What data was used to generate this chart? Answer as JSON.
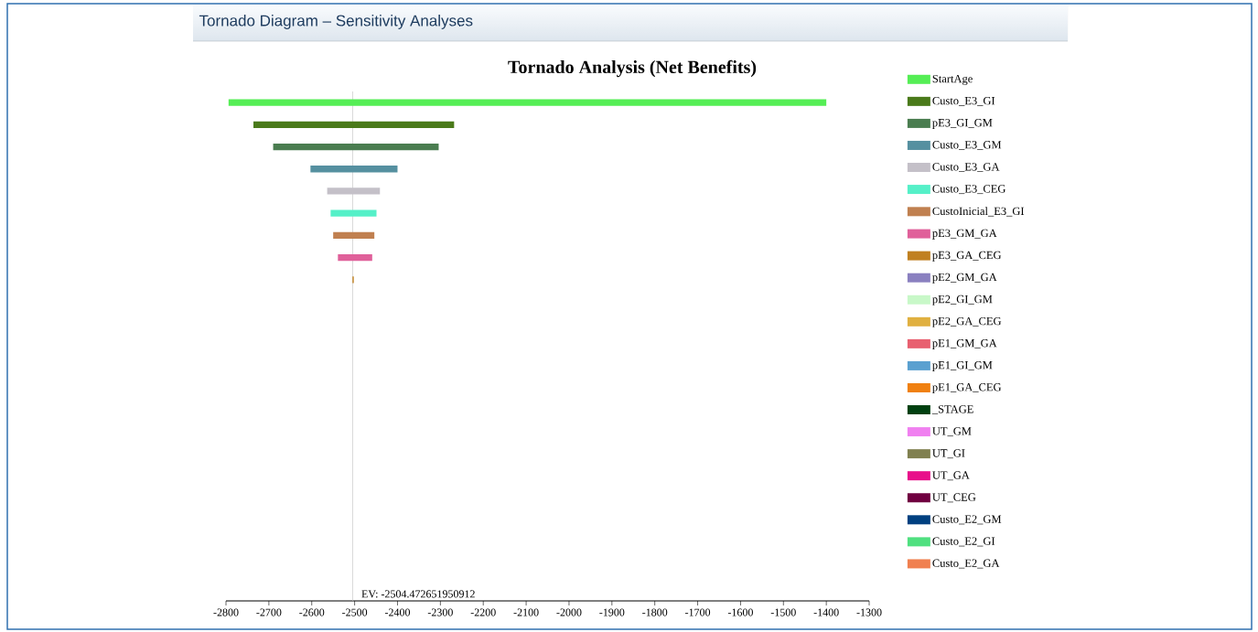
{
  "chart_data": {
    "type": "bar",
    "orientation": "horizontal",
    "title": "Tornado Analysis (Net Benefits)",
    "annotations": [
      "Tornado Diagram – Sensitivity Analyses"
    ],
    "categories": [
      null,
      null,
      null,
      null,
      null,
      null,
      null,
      null,
      null,
      null,
      null,
      null,
      null,
      null,
      null,
      null,
      null,
      null,
      null,
      null,
      null,
      null,
      null
    ],
    "series": [
      {
        "name": "StartAge",
        "color": "#55ee55",
        "base": [
          -2794,
          null,
          null,
          null,
          null,
          null,
          null,
          null,
          null,
          null,
          null,
          null,
          null,
          null,
          null,
          null,
          null,
          null,
          null,
          null,
          null,
          null,
          null
        ],
        "values": [
          1394,
          null,
          null,
          null,
          null,
          null,
          null,
          null,
          null,
          null,
          null,
          null,
          null,
          null,
          null,
          null,
          null,
          null,
          null,
          null,
          null,
          null,
          null
        ]
      },
      {
        "name": "Custo_E3_GI",
        "color": "#4a7a1a",
        "base": [
          null,
          -2736,
          null,
          null,
          null,
          null,
          null,
          null,
          null,
          null,
          null,
          null,
          null,
          null,
          null,
          null,
          null,
          null,
          null,
          null,
          null,
          null,
          null
        ],
        "values": [
          null,
          468,
          null,
          null,
          null,
          null,
          null,
          null,
          null,
          null,
          null,
          null,
          null,
          null,
          null,
          null,
          null,
          null,
          null,
          null,
          null,
          null,
          null
        ]
      },
      {
        "name": "pE3_GI_GM",
        "color": "#4a7d50",
        "base": [
          null,
          null,
          -2690,
          null,
          null,
          null,
          null,
          null,
          null,
          null,
          null,
          null,
          null,
          null,
          null,
          null,
          null,
          null,
          null,
          null,
          null,
          null,
          null
        ],
        "values": [
          null,
          null,
          386,
          null,
          null,
          null,
          null,
          null,
          null,
          null,
          null,
          null,
          null,
          null,
          null,
          null,
          null,
          null,
          null,
          null,
          null,
          null,
          null
        ]
      },
      {
        "name": "Custo_E3_GM",
        "color": "#5590a0",
        "base": [
          null,
          null,
          null,
          -2603,
          null,
          null,
          null,
          null,
          null,
          null,
          null,
          null,
          null,
          null,
          null,
          null,
          null,
          null,
          null,
          null,
          null,
          null,
          null
        ],
        "values": [
          null,
          null,
          null,
          203,
          null,
          null,
          null,
          null,
          null,
          null,
          null,
          null,
          null,
          null,
          null,
          null,
          null,
          null,
          null,
          null,
          null,
          null,
          null
        ]
      },
      {
        "name": "Custo_E3_GA",
        "color": "#c4c0c8",
        "base": [
          null,
          null,
          null,
          null,
          -2564,
          null,
          null,
          null,
          null,
          null,
          null,
          null,
          null,
          null,
          null,
          null,
          null,
          null,
          null,
          null,
          null,
          null,
          null
        ],
        "values": [
          null,
          null,
          null,
          null,
          123,
          null,
          null,
          null,
          null,
          null,
          null,
          null,
          null,
          null,
          null,
          null,
          null,
          null,
          null,
          null,
          null,
          null,
          null
        ]
      },
      {
        "name": "Custo_E3_CEG",
        "color": "#55f0c8",
        "base": [
          null,
          null,
          null,
          null,
          null,
          -2556,
          null,
          null,
          null,
          null,
          null,
          null,
          null,
          null,
          null,
          null,
          null,
          null,
          null,
          null,
          null,
          null,
          null
        ],
        "values": [
          null,
          null,
          null,
          null,
          null,
          107,
          null,
          null,
          null,
          null,
          null,
          null,
          null,
          null,
          null,
          null,
          null,
          null,
          null,
          null,
          null,
          null,
          null
        ]
      },
      {
        "name": "CustoInicial_E3_GI",
        "color": "#c08050",
        "base": [
          null,
          null,
          null,
          null,
          null,
          null,
          -2550,
          null,
          null,
          null,
          null,
          null,
          null,
          null,
          null,
          null,
          null,
          null,
          null,
          null,
          null,
          null,
          null
        ],
        "values": [
          null,
          null,
          null,
          null,
          null,
          null,
          96,
          null,
          null,
          null,
          null,
          null,
          null,
          null,
          null,
          null,
          null,
          null,
          null,
          null,
          null,
          null,
          null
        ]
      },
      {
        "name": "pE3_GM_GA",
        "color": "#e0609a",
        "base": [
          null,
          null,
          null,
          null,
          null,
          null,
          null,
          -2539,
          null,
          null,
          null,
          null,
          null,
          null,
          null,
          null,
          null,
          null,
          null,
          null,
          null,
          null,
          null
        ],
        "values": [
          null,
          null,
          null,
          null,
          null,
          null,
          null,
          80,
          null,
          null,
          null,
          null,
          null,
          null,
          null,
          null,
          null,
          null,
          null,
          null,
          null,
          null,
          null
        ]
      },
      {
        "name": "pE3_GA_CEG",
        "color": "#c08020",
        "base": [
          null,
          null,
          null,
          null,
          null,
          null,
          null,
          null,
          -2505,
          null,
          null,
          null,
          null,
          null,
          null,
          null,
          null,
          null,
          null,
          null,
          null,
          null,
          null
        ],
        "values": [
          null,
          null,
          null,
          null,
          null,
          null,
          null,
          null,
          3,
          null,
          null,
          null,
          null,
          null,
          null,
          null,
          null,
          null,
          null,
          null,
          null,
          null,
          null
        ]
      },
      {
        "name": "pE2_GM_GA",
        "color": "#8a80c0",
        "values": [
          null,
          null,
          null,
          null,
          null,
          null,
          null,
          null,
          null,
          null,
          null,
          null,
          null,
          null,
          null,
          null,
          null,
          null,
          null,
          null,
          null,
          null,
          null
        ]
      },
      {
        "name": "pE2_GI_GM",
        "color": "#c8f8c8",
        "values": [
          null,
          null,
          null,
          null,
          null,
          null,
          null,
          null,
          null,
          null,
          null,
          null,
          null,
          null,
          null,
          null,
          null,
          null,
          null,
          null,
          null,
          null,
          null
        ]
      },
      {
        "name": "pE2_GA_CEG",
        "color": "#e0b040",
        "values": [
          null,
          null,
          null,
          null,
          null,
          null,
          null,
          null,
          null,
          null,
          null,
          null,
          null,
          null,
          null,
          null,
          null,
          null,
          null,
          null,
          null,
          null,
          null
        ]
      },
      {
        "name": "pE1_GM_GA",
        "color": "#e86070",
        "values": [
          null,
          null,
          null,
          null,
          null,
          null,
          null,
          null,
          null,
          null,
          null,
          null,
          null,
          null,
          null,
          null,
          null,
          null,
          null,
          null,
          null,
          null,
          null
        ]
      },
      {
        "name": "pE1_GI_GM",
        "color": "#5aa0d0",
        "values": [
          null,
          null,
          null,
          null,
          null,
          null,
          null,
          null,
          null,
          null,
          null,
          null,
          null,
          null,
          null,
          null,
          null,
          null,
          null,
          null,
          null,
          null,
          null
        ]
      },
      {
        "name": "pE1_GA_CEG",
        "color": "#f08010",
        "values": [
          null,
          null,
          null,
          null,
          null,
          null,
          null,
          null,
          null,
          null,
          null,
          null,
          null,
          null,
          null,
          null,
          null,
          null,
          null,
          null,
          null,
          null,
          null
        ]
      },
      {
        "name": "_STAGE",
        "color": "#004010",
        "values": [
          null,
          null,
          null,
          null,
          null,
          null,
          null,
          null,
          null,
          null,
          null,
          null,
          null,
          null,
          null,
          null,
          null,
          null,
          null,
          null,
          null,
          null,
          null
        ]
      },
      {
        "name": "UT_GM",
        "color": "#f080f0",
        "values": [
          null,
          null,
          null,
          null,
          null,
          null,
          null,
          null,
          null,
          null,
          null,
          null,
          null,
          null,
          null,
          null,
          null,
          null,
          null,
          null,
          null,
          null,
          null
        ]
      },
      {
        "name": "UT_GI",
        "color": "#808050",
        "values": [
          null,
          null,
          null,
          null,
          null,
          null,
          null,
          null,
          null,
          null,
          null,
          null,
          null,
          null,
          null,
          null,
          null,
          null,
          null,
          null,
          null,
          null,
          null
        ]
      },
      {
        "name": "UT_GA",
        "color": "#e8108a",
        "values": [
          null,
          null,
          null,
          null,
          null,
          null,
          null,
          null,
          null,
          null,
          null,
          null,
          null,
          null,
          null,
          null,
          null,
          null,
          null,
          null,
          null,
          null,
          null
        ]
      },
      {
        "name": "UT_CEG",
        "color": "#700040",
        "values": [
          null,
          null,
          null,
          null,
          null,
          null,
          null,
          null,
          null,
          null,
          null,
          null,
          null,
          null,
          null,
          null,
          null,
          null,
          null,
          null,
          null,
          null,
          null
        ]
      },
      {
        "name": "Custo_E2_GM",
        "color": "#004080",
        "values": [
          null,
          null,
          null,
          null,
          null,
          null,
          null,
          null,
          null,
          null,
          null,
          null,
          null,
          null,
          null,
          null,
          null,
          null,
          null,
          null,
          null,
          null,
          null
        ]
      },
      {
        "name": "Custo_E2_GI",
        "color": "#50e080",
        "values": [
          null,
          null,
          null,
          null,
          null,
          null,
          null,
          null,
          null,
          null,
          null,
          null,
          null,
          null,
          null,
          null,
          null,
          null,
          null,
          null,
          null,
          null,
          null
        ]
      },
      {
        "name": "Custo_E2_GA",
        "color": "#f08050",
        "values": [
          null,
          null,
          null,
          null,
          null,
          null,
          null,
          null,
          null,
          null,
          null,
          null,
          null,
          null,
          null,
          null,
          null,
          null,
          null,
          null,
          null,
          null,
          null
        ]
      }
    ],
    "grid": false,
    "xlim": [
      -2800,
      -1300
    ],
    "xticks": [
      -2800,
      -2700,
      -2600,
      -2500,
      -2400,
      -2300,
      -2200,
      -2100,
      -2000,
      -1900,
      -1800,
      -1700,
      -1600,
      -1500,
      -1400,
      -1300
    ],
    "ref_lines": [
      {
        "axis": "x",
        "value": -2504.472651950912,
        "label": "EV: -2504.472651950912",
        "color": "#c0c0c0"
      }
    ],
    "legend": "right"
  }
}
